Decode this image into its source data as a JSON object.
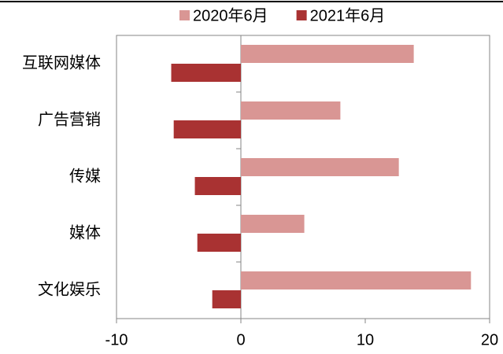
{
  "chart_data": {
    "type": "hbar",
    "categories": [
      "互联网媒体",
      "广告营销",
      "传媒",
      "媒体",
      "文化娱乐"
    ],
    "series": [
      {
        "name": "2020年6月",
        "color": "#d99694",
        "values": [
          13.9,
          8.0,
          12.7,
          5.1,
          18.5
        ]
      },
      {
        "name": "2021年6月",
        "color": "#a93232",
        "values": [
          -5.6,
          -5.4,
          -3.7,
          -3.5,
          -2.3
        ]
      }
    ],
    "xlim": [
      -10,
      20
    ],
    "xticks": [
      -10,
      0,
      10,
      20
    ],
    "legend": "top",
    "grid": false
  }
}
